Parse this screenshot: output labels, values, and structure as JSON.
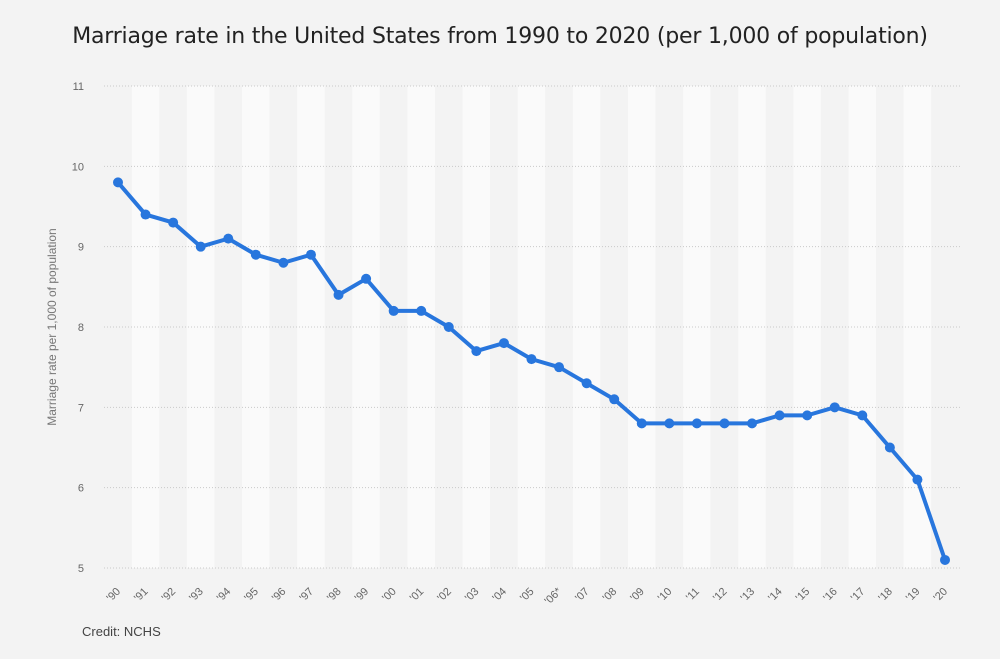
{
  "chart_data": {
    "type": "line",
    "title": "Marriage rate in the United States from 1990 to 2020 (per 1,000 of population)",
    "xlabel": "",
    "ylabel": "Marriage rate per 1,000 of population",
    "categories": [
      "'90",
      "'91",
      "'92",
      "'93",
      "'94",
      "'95",
      "'96",
      "'97",
      "'98",
      "'99",
      "'00",
      "'01",
      "'02",
      "'03",
      "'04",
      "'05",
      "'06*",
      "'07",
      "'08",
      "'09",
      "'10",
      "'11",
      "'12",
      "'13",
      "'14",
      "'15",
      "'16",
      "'17",
      "'18",
      "'19",
      "'20"
    ],
    "series": [
      {
        "name": "Marriage rate",
        "color": "#2876dd",
        "values": [
          9.8,
          9.4,
          9.3,
          9.0,
          9.1,
          8.9,
          8.8,
          8.9,
          8.4,
          8.6,
          8.2,
          8.2,
          8.0,
          7.7,
          7.8,
          7.6,
          7.5,
          7.3,
          7.1,
          6.8,
          6.8,
          6.8,
          6.8,
          6.8,
          6.9,
          6.9,
          7.0,
          6.9,
          6.5,
          6.1,
          5.1
        ]
      }
    ],
    "ylim": [
      5,
      11
    ],
    "yticks": [
      5,
      6,
      7,
      8,
      9,
      10,
      11
    ],
    "grid": true
  },
  "credit": "Credit: NCHS"
}
